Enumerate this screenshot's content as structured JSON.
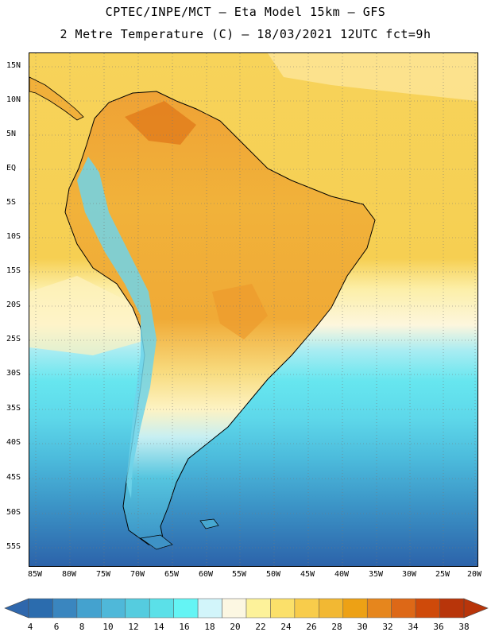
{
  "header": {
    "line1": "CPTEC/INPE/MCT –  Eta Model 15km – GFS",
    "line2": "2 Metre Temperature (C) – 18/03/2021 12UTC fct=9h"
  },
  "map": {
    "variable": "2 Metre Temperature",
    "units": "C",
    "lat_labels": [
      "15N",
      "10N",
      "5N",
      "EQ",
      "5S",
      "10S",
      "15S",
      "20S",
      "25S",
      "30S",
      "35S",
      "40S",
      "45S",
      "50S",
      "55S"
    ],
    "lon_labels": [
      "85W",
      "80W",
      "75W",
      "70W",
      "65W",
      "60W",
      "55W",
      "50W",
      "45W",
      "40W",
      "35W",
      "30W",
      "25W",
      "20W"
    ]
  },
  "colorbar": {
    "ticks": [
      "4",
      "6",
      "8",
      "10",
      "12",
      "14",
      "16",
      "18",
      "20",
      "22",
      "24",
      "26",
      "28",
      "30",
      "32",
      "34",
      "36",
      "38"
    ],
    "colors": [
      "#2b6cae",
      "#3a86bf",
      "#44a2cf",
      "#4fb8d9",
      "#55ccdf",
      "#5be0e8",
      "#64f4f4",
      "#d2f5fa",
      "#fcf7e2",
      "#fdf29a",
      "#fbe06a",
      "#f8cc4b",
      "#f2b833",
      "#eda115",
      "#e6861d",
      "#dd6817",
      "#cf4a0a",
      "#b8350a"
    ],
    "low_color": "#2f67ac",
    "high_color": "#b8350a"
  }
}
